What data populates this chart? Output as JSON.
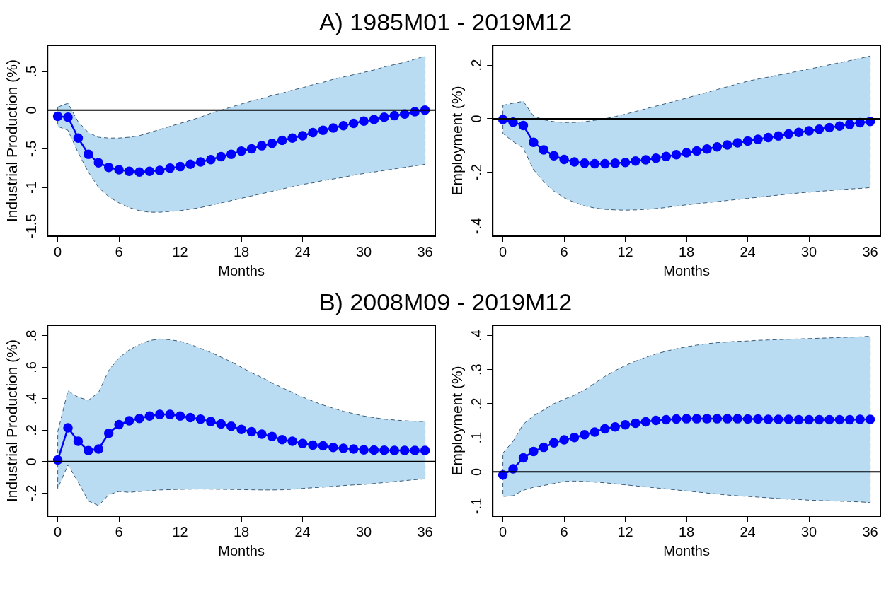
{
  "chart_data": [
    {
      "type": "line",
      "title": "A) 1985M01 - 2019M12",
      "xlabel": "Months",
      "ylabel": "Industrial Production (%)",
      "x": [
        0,
        1,
        2,
        3,
        4,
        5,
        6,
        7,
        8,
        9,
        10,
        11,
        12,
        13,
        14,
        15,
        16,
        17,
        18,
        19,
        20,
        21,
        22,
        23,
        24,
        25,
        26,
        27,
        28,
        29,
        30,
        31,
        32,
        33,
        34,
        35,
        36
      ],
      "xlim": [
        -1,
        37
      ],
      "xticks": [
        0,
        6,
        12,
        18,
        24,
        30,
        36
      ],
      "ylim": [
        -1.63,
        0.84
      ],
      "yticks": [
        {
          "value": 0.5,
          "label": ".5"
        },
        0,
        {
          "value": -0.5,
          "label": "-.5"
        },
        -1,
        -1.5
      ],
      "grid": false,
      "legend": false,
      "marker": "circle",
      "line_style": "solid",
      "ref_lines": [
        {
          "axis": "y",
          "value": 0,
          "color": "#000000"
        }
      ],
      "series": [
        {
          "color": "#0000ff",
          "values": [
            -0.08,
            -0.09,
            -0.36,
            -0.57,
            -0.68,
            -0.74,
            -0.77,
            -0.79,
            -0.8,
            -0.79,
            -0.78,
            -0.75,
            -0.73,
            -0.7,
            -0.67,
            -0.64,
            -0.6,
            -0.57,
            -0.53,
            -0.5,
            -0.46,
            -0.43,
            -0.39,
            -0.36,
            -0.33,
            -0.29,
            -0.26,
            -0.23,
            -0.2,
            -0.17,
            -0.14,
            -0.12,
            -0.09,
            -0.07,
            -0.05,
            -0.02,
            0.0
          ],
          "upper": [
            0.04,
            0.09,
            -0.15,
            -0.29,
            -0.35,
            -0.36,
            -0.36,
            -0.35,
            -0.33,
            -0.29,
            -0.25,
            -0.21,
            -0.17,
            -0.13,
            -0.09,
            -0.04,
            0.0,
            0.04,
            0.08,
            0.12,
            0.15,
            0.19,
            0.22,
            0.26,
            0.29,
            0.33,
            0.36,
            0.4,
            0.43,
            0.46,
            0.49,
            0.52,
            0.56,
            0.59,
            0.62,
            0.66,
            0.7
          ],
          "lower": [
            -0.21,
            -0.26,
            -0.55,
            -0.8,
            -1.0,
            -1.12,
            -1.2,
            -1.26,
            -1.3,
            -1.32,
            -1.32,
            -1.31,
            -1.3,
            -1.28,
            -1.26,
            -1.23,
            -1.2,
            -1.17,
            -1.14,
            -1.11,
            -1.08,
            -1.05,
            -1.02,
            -0.99,
            -0.96,
            -0.94,
            -0.91,
            -0.89,
            -0.87,
            -0.84,
            -0.82,
            -0.8,
            -0.78,
            -0.76,
            -0.74,
            -0.72,
            -0.7
          ]
        }
      ]
    },
    {
      "type": "line",
      "xlabel": "Months",
      "ylabel": "Employment (%)",
      "x": [
        0,
        1,
        2,
        3,
        4,
        5,
        6,
        7,
        8,
        9,
        10,
        11,
        12,
        13,
        14,
        15,
        16,
        17,
        18,
        19,
        20,
        21,
        22,
        23,
        24,
        25,
        26,
        27,
        28,
        29,
        30,
        31,
        32,
        33,
        34,
        35,
        36
      ],
      "xlim": [
        -1,
        37
      ],
      "xticks": [
        0,
        6,
        12,
        18,
        24,
        30,
        36
      ],
      "ylim": [
        -0.438,
        0.274
      ],
      "yticks": [
        {
          "value": 0.2,
          "label": ".2"
        },
        0,
        {
          "value": -0.2,
          "label": "-.2"
        },
        {
          "value": -0.4,
          "label": "-.4"
        }
      ],
      "grid": false,
      "legend": false,
      "marker": "circle",
      "line_style": "solid",
      "ref_lines": [
        {
          "axis": "y",
          "value": 0,
          "color": "#000000"
        }
      ],
      "series": [
        {
          "color": "#0000ff",
          "values": [
            -0.003,
            -0.013,
            -0.025,
            -0.088,
            -0.116,
            -0.138,
            -0.152,
            -0.161,
            -0.166,
            -0.168,
            -0.168,
            -0.166,
            -0.163,
            -0.158,
            -0.153,
            -0.147,
            -0.141,
            -0.134,
            -0.127,
            -0.12,
            -0.113,
            -0.105,
            -0.098,
            -0.09,
            -0.083,
            -0.077,
            -0.07,
            -0.064,
            -0.057,
            -0.051,
            -0.045,
            -0.039,
            -0.033,
            -0.027,
            -0.021,
            -0.015,
            -0.01
          ],
          "upper": [
            0.05,
            0.058,
            0.065,
            0.01,
            -0.004,
            -0.011,
            -0.014,
            -0.014,
            -0.011,
            -0.006,
            0.0,
            0.008,
            0.017,
            0.027,
            0.037,
            0.047,
            0.057,
            0.067,
            0.077,
            0.088,
            0.098,
            0.109,
            0.119,
            0.13,
            0.14,
            0.148,
            0.155,
            0.163,
            0.17,
            0.178,
            0.185,
            0.193,
            0.201,
            0.209,
            0.217,
            0.225,
            0.234
          ],
          "lower": [
            -0.055,
            -0.085,
            -0.11,
            -0.19,
            -0.235,
            -0.27,
            -0.295,
            -0.312,
            -0.325,
            -0.333,
            -0.338,
            -0.34,
            -0.341,
            -0.34,
            -0.338,
            -0.335,
            -0.331,
            -0.326,
            -0.321,
            -0.317,
            -0.313,
            -0.309,
            -0.305,
            -0.301,
            -0.297,
            -0.293,
            -0.289,
            -0.285,
            -0.281,
            -0.277,
            -0.274,
            -0.271,
            -0.268,
            -0.265,
            -0.262,
            -0.26,
            -0.257
          ]
        }
      ]
    },
    {
      "type": "line",
      "title": "B) 2008M09 - 2019M12",
      "xlabel": "Months",
      "ylabel": "Industrial Production (%)",
      "x": [
        0,
        1,
        2,
        3,
        4,
        5,
        6,
        7,
        8,
        9,
        10,
        11,
        12,
        13,
        14,
        15,
        16,
        17,
        18,
        19,
        20,
        21,
        22,
        23,
        24,
        25,
        26,
        27,
        28,
        29,
        30,
        31,
        32,
        33,
        34,
        35,
        36
      ],
      "xlim": [
        -1,
        37
      ],
      "xticks": [
        0,
        6,
        12,
        18,
        24,
        30,
        36
      ],
      "ylim": [
        -0.347,
        0.867
      ],
      "yticks": [
        {
          "value": 0.8,
          "label": ".8"
        },
        {
          "value": 0.6,
          "label": ".6"
        },
        {
          "value": 0.4,
          "label": ".4"
        },
        {
          "value": 0.2,
          "label": ".2"
        },
        0,
        {
          "value": -0.2,
          "label": "-.2"
        }
      ],
      "grid": false,
      "legend": false,
      "marker": "circle",
      "line_style": "solid",
      "ref_lines": [
        {
          "axis": "y",
          "value": 0,
          "color": "#000000"
        }
      ],
      "series": [
        {
          "color": "#0000ff",
          "values": [
            0.01,
            0.215,
            0.13,
            0.07,
            0.08,
            0.18,
            0.235,
            0.26,
            0.275,
            0.29,
            0.3,
            0.3,
            0.29,
            0.28,
            0.27,
            0.255,
            0.24,
            0.225,
            0.205,
            0.19,
            0.175,
            0.16,
            0.14,
            0.13,
            0.115,
            0.105,
            0.1,
            0.09,
            0.085,
            0.08,
            0.075,
            0.073,
            0.072,
            0.071,
            0.071,
            0.071,
            0.071
          ],
          "upper": [
            0.19,
            0.45,
            0.41,
            0.39,
            0.44,
            0.58,
            0.66,
            0.71,
            0.745,
            0.77,
            0.78,
            0.775,
            0.765,
            0.745,
            0.72,
            0.695,
            0.665,
            0.635,
            0.6,
            0.565,
            0.535,
            0.5,
            0.47,
            0.44,
            0.41,
            0.385,
            0.36,
            0.34,
            0.32,
            0.305,
            0.29,
            0.28,
            0.27,
            0.265,
            0.26,
            0.257,
            0.255
          ],
          "lower": [
            -0.17,
            -0.02,
            -0.13,
            -0.25,
            -0.28,
            -0.21,
            -0.19,
            -0.195,
            -0.19,
            -0.185,
            -0.18,
            -0.178,
            -0.176,
            -0.175,
            -0.174,
            -0.175,
            -0.176,
            -0.177,
            -0.178,
            -0.179,
            -0.18,
            -0.18,
            -0.179,
            -0.176,
            -0.17,
            -0.166,
            -0.162,
            -0.157,
            -0.152,
            -0.148,
            -0.145,
            -0.139,
            -0.133,
            -0.127,
            -0.121,
            -0.115,
            -0.11
          ]
        }
      ]
    },
    {
      "type": "line",
      "xlabel": "Months",
      "ylabel": "Employment (%)",
      "x": [
        0,
        1,
        2,
        3,
        4,
        5,
        6,
        7,
        8,
        9,
        10,
        11,
        12,
        13,
        14,
        15,
        16,
        17,
        18,
        19,
        20,
        21,
        22,
        23,
        24,
        25,
        26,
        27,
        28,
        29,
        30,
        31,
        32,
        33,
        34,
        35,
        36
      ],
      "xlim": [
        -1,
        37
      ],
      "xticks": [
        0,
        6,
        12,
        18,
        24,
        30,
        36
      ],
      "ylim": [
        -0.13,
        0.43
      ],
      "yticks": [
        {
          "value": 0.4,
          "label": ".4"
        },
        {
          "value": 0.3,
          "label": ".3"
        },
        {
          "value": 0.2,
          "label": ".2"
        },
        {
          "value": 0.1,
          "label": ".1"
        },
        0,
        {
          "value": -0.1,
          "label": "-.1"
        }
      ],
      "grid": false,
      "legend": false,
      "marker": "circle",
      "line_style": "solid",
      "ref_lines": [
        {
          "axis": "y",
          "value": 0,
          "color": "#000000"
        }
      ],
      "series": [
        {
          "color": "#0000ff",
          "values": [
            -0.009,
            0.009,
            0.041,
            0.06,
            0.072,
            0.085,
            0.094,
            0.101,
            0.109,
            0.117,
            0.126,
            0.132,
            0.138,
            0.143,
            0.147,
            0.151,
            0.153,
            0.155,
            0.156,
            0.156,
            0.156,
            0.156,
            0.156,
            0.156,
            0.155,
            0.155,
            0.154,
            0.154,
            0.154,
            0.153,
            0.153,
            0.153,
            0.153,
            0.153,
            0.153,
            0.154,
            0.154
          ],
          "upper": [
            0.055,
            0.09,
            0.14,
            0.165,
            0.182,
            0.2,
            0.213,
            0.225,
            0.24,
            0.26,
            0.28,
            0.297,
            0.312,
            0.325,
            0.336,
            0.346,
            0.354,
            0.361,
            0.367,
            0.372,
            0.376,
            0.379,
            0.381,
            0.383,
            0.384,
            0.386,
            0.387,
            0.388,
            0.389,
            0.39,
            0.391,
            0.392,
            0.393,
            0.394,
            0.395,
            0.396,
            0.398
          ],
          "lower": [
            -0.072,
            -0.07,
            -0.054,
            -0.045,
            -0.04,
            -0.034,
            -0.028,
            -0.027,
            -0.028,
            -0.03,
            -0.032,
            -0.035,
            -0.038,
            -0.041,
            -0.044,
            -0.047,
            -0.05,
            -0.053,
            -0.056,
            -0.059,
            -0.062,
            -0.065,
            -0.068,
            -0.07,
            -0.072,
            -0.074,
            -0.076,
            -0.078,
            -0.08,
            -0.081,
            -0.083,
            -0.084,
            -0.085,
            -0.086,
            -0.087,
            -0.088,
            -0.09
          ]
        }
      ]
    }
  ]
}
